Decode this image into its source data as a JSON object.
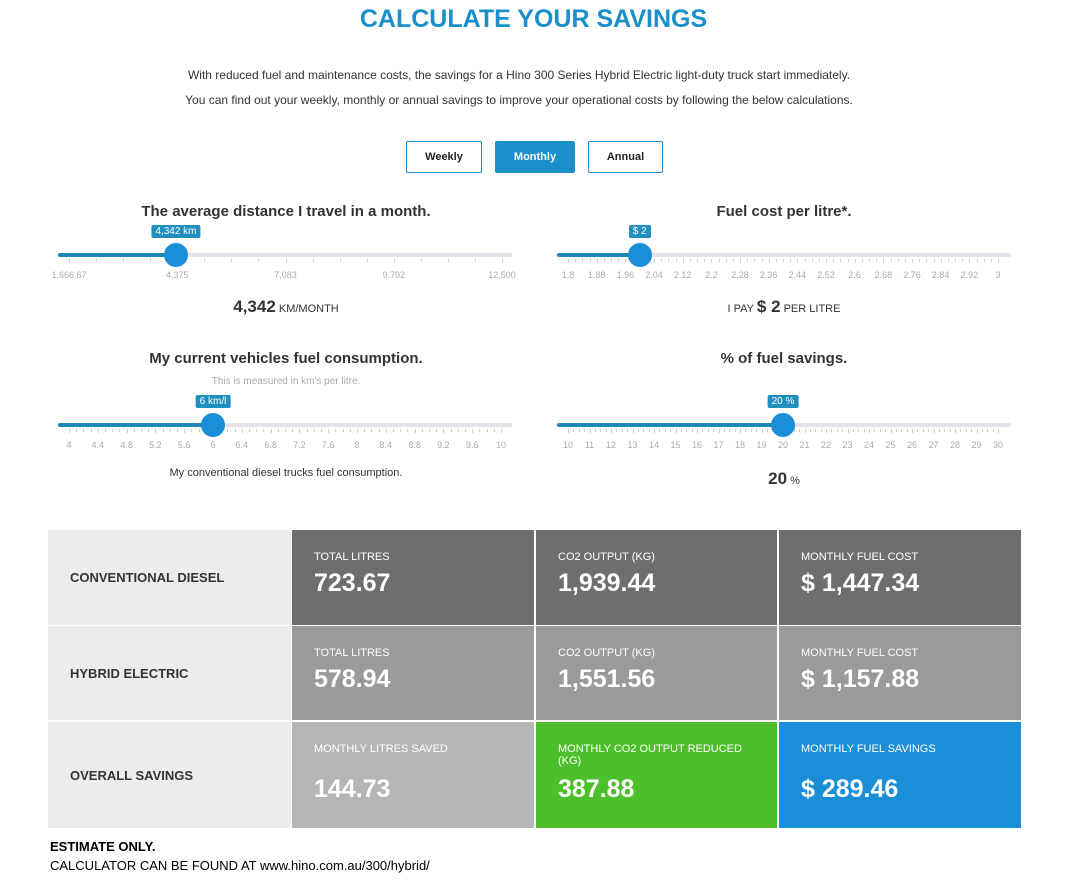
{
  "title": "CALCULATE YOUR SAVINGS",
  "intro": [
    "With reduced fuel and maintenance costs, the savings for a Hino 300 Series Hybrid Electric light-duty truck start immediately.",
    "You can find out your weekly, monthly or annual savings to improve your operational costs by following the below calculations."
  ],
  "periods": [
    {
      "label": "Weekly",
      "active": false
    },
    {
      "label": "Monthly",
      "active": true
    },
    {
      "label": "Annual",
      "active": false
    }
  ],
  "accent": "#1a8fc9",
  "sliders": [
    {
      "title": "The average distance I travel in a month.",
      "min": 1666.67,
      "max": 12500,
      "value": 4342,
      "tooltip": "4,342 km",
      "labels": [
        "1,666.67",
        "4,375",
        "7,083",
        "9,792",
        "12,500"
      ],
      "readout_value": "4,342",
      "readout_suffix": "KM/MONTH"
    },
    {
      "title": "Fuel cost per litre*.",
      "min": 1.8,
      "max": 3,
      "value": 2,
      "tooltip": "$ 2",
      "labels": [
        "1.8",
        "1.88",
        "1.96",
        "2.04",
        "2.12",
        "2.2",
        "2.28",
        "2.36",
        "2.44",
        "2.52",
        "2.6",
        "2.68",
        "2.76",
        "2.84",
        "2.92",
        "3"
      ],
      "readout_prefix": "I PAY",
      "readout_value": "$ 2",
      "readout_suffix": "PER LITRE"
    },
    {
      "title": "My current vehicles fuel consumption.",
      "subtitle": "This is measured in km's per litre.",
      "min": 4,
      "max": 10,
      "value": 6,
      "tooltip": "6 km/l",
      "labels": [
        "4",
        "4.4",
        "4.8",
        "5.2",
        "5.6",
        "6",
        "6.4",
        "6.8",
        "7.2",
        "7.6",
        "8",
        "8.4",
        "8.8",
        "9.2",
        "9.6",
        "10"
      ],
      "note": "My conventional diesel trucks fuel consumption."
    },
    {
      "title": "% of fuel savings.",
      "min": 10,
      "max": 30,
      "value": 20,
      "tooltip": "20 %",
      "labels": [
        "10",
        "11",
        "12",
        "13",
        "14",
        "15",
        "16",
        "17",
        "18",
        "19",
        "20",
        "21",
        "22",
        "23",
        "24",
        "25",
        "26",
        "27",
        "28",
        "29",
        "30"
      ],
      "readout_value": "20",
      "readout_suffix": "%"
    }
  ],
  "results": [
    {
      "row": "CONVENTIONAL DIESEL",
      "cells": [
        {
          "label": "TOTAL LITRES",
          "value": "723.67",
          "color": "#6e6e6e"
        },
        {
          "label": "CO2 OUTPUT (KG)",
          "value": "1,939.44",
          "color": "#6e6e6e"
        },
        {
          "label": "MONTHLY FUEL COST",
          "value": "$ 1,447.34",
          "color": "#6e6e6e"
        }
      ]
    },
    {
      "row": "HYBRID ELECTRIC",
      "cells": [
        {
          "label": "TOTAL LITRES",
          "value": "578.94",
          "color": "#9a9a9a"
        },
        {
          "label": "CO2 OUTPUT (KG)",
          "value": "1,551.56",
          "color": "#9a9a9a"
        },
        {
          "label": "MONTHLY FUEL COST",
          "value": "$ 1,157.88",
          "color": "#9a9a9a"
        }
      ]
    },
    {
      "row": "OVERALL SAVINGS",
      "cells": [
        {
          "label": "MONTHLY LITRES SAVED",
          "value": "144.73",
          "color": "#b5b5b5"
        },
        {
          "label": "MONTHLY CO2 OUTPUT REDUCED (KG)",
          "value": "387.88",
          "color": "#4cbf2a"
        },
        {
          "label": "MONTHLY FUEL SAVINGS",
          "value": "$ 289.46",
          "color": "#1a8fd8"
        }
      ]
    }
  ],
  "footer": {
    "line1": "ESTIMATE ONLY.",
    "line2": "CALCULATOR CAN BE FOUND AT www.hino.com.au/300/hybrid/"
  }
}
